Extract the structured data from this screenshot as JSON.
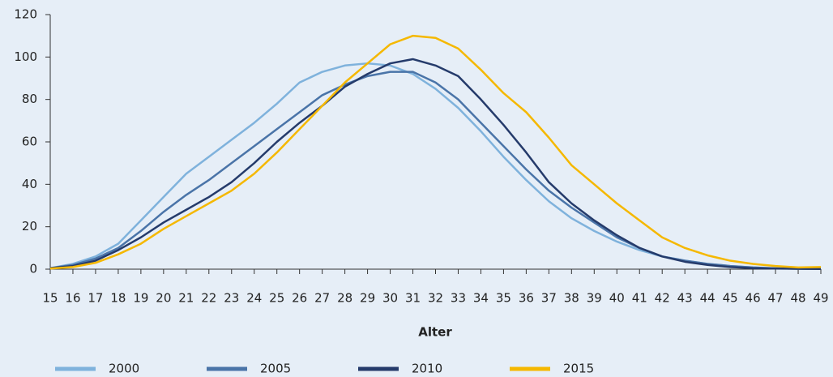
{
  "chart_data": {
    "type": "line",
    "x_label": "Alter",
    "x": [
      15,
      16,
      17,
      18,
      19,
      20,
      21,
      22,
      23,
      24,
      25,
      26,
      27,
      28,
      29,
      30,
      31,
      32,
      33,
      34,
      35,
      36,
      37,
      38,
      39,
      40,
      41,
      42,
      43,
      44,
      45,
      46,
      47,
      48,
      49
    ],
    "xlim": [
      15,
      49
    ],
    "xticks": [
      15,
      16,
      17,
      18,
      19,
      20,
      21,
      22,
      23,
      24,
      25,
      26,
      27,
      28,
      29,
      30,
      31,
      32,
      33,
      34,
      35,
      36,
      37,
      38,
      39,
      40,
      41,
      42,
      43,
      44,
      45,
      46,
      47,
      48,
      49
    ],
    "ylim": [
      0,
      120
    ],
    "yticks": [
      0,
      20,
      40,
      60,
      80,
      100,
      120
    ],
    "grid": false,
    "legend": "bottom",
    "series": [
      {
        "name": "2000",
        "color": "#7fb2dc",
        "values": [
          0.5,
          2.5,
          6,
          12,
          23,
          34,
          45,
          53,
          61,
          69,
          78,
          88,
          93,
          96,
          97,
          96,
          92,
          85,
          76,
          65,
          53,
          42,
          32,
          24,
          18,
          13,
          9,
          6,
          4,
          2.5,
          1.5,
          0.8,
          0.4,
          0.2,
          0.1
        ]
      },
      {
        "name": "2005",
        "color": "#4a74a8",
        "values": [
          0.5,
          2,
          5,
          10,
          18,
          27,
          35,
          42,
          50,
          58,
          66,
          74,
          82,
          87,
          91,
          93,
          93,
          88,
          80,
          69,
          58,
          47,
          37,
          29,
          22,
          15,
          10,
          6,
          4,
          2.5,
          1.5,
          0.8,
          0.4,
          0.2,
          0.1
        ]
      },
      {
        "name": "2010",
        "color": "#253b6b",
        "values": [
          0.5,
          1.5,
          4,
          9,
          15,
          22,
          28,
          34,
          41,
          50,
          60,
          69,
          77,
          86,
          92,
          97,
          99,
          96,
          91,
          80,
          68,
          55,
          41,
          31,
          23,
          16,
          10,
          6,
          3.5,
          2,
          1,
          0.5,
          0.3,
          0.2,
          0.1
        ]
      },
      {
        "name": "2015",
        "color": "#f5b800",
        "values": [
          0.3,
          1,
          3,
          7,
          12,
          19,
          25,
          31,
          37,
          45,
          55,
          66,
          77,
          88,
          97,
          106,
          110,
          109,
          104,
          94,
          83,
          74,
          62,
          49,
          40,
          31,
          23,
          15,
          10,
          6.5,
          4,
          2.5,
          1.5,
          0.8,
          1
        ]
      }
    ]
  }
}
